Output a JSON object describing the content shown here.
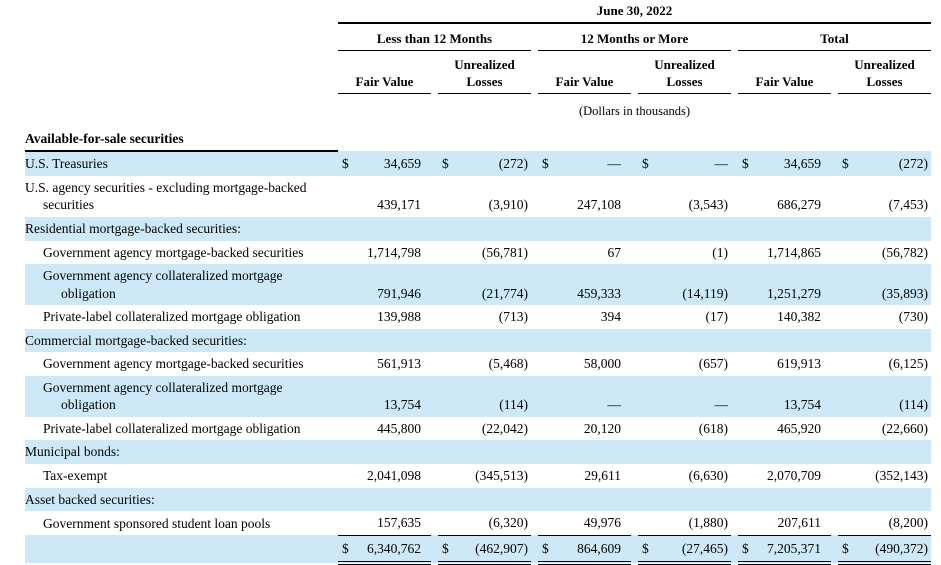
{
  "colors": {
    "row_highlight": "#cde9f8",
    "rule": "#000000",
    "text": "#000000"
  },
  "header": {
    "date": "June 30, 2022",
    "groups": [
      "Less than 12 Months",
      "12 Months or More",
      "Total"
    ],
    "sub": {
      "fair_value": "Fair Value",
      "unrealized_line1": "Unrealized",
      "unrealized_line2": "Losses"
    },
    "units_note": "(Dollars in thousands)",
    "section_title": "Available-for-sale securities"
  },
  "columns": [
    "Less than 12 Months Fair Value",
    "Less than 12 Months Unrealized Losses",
    "12 Months or More Fair Value",
    "12 Months or More Unrealized Losses",
    "Total Fair Value",
    "Total Unrealized Losses"
  ],
  "rows": [
    {
      "label": "U.S. Treasuries",
      "indent": 0,
      "highlight": true,
      "dollar": true,
      "values": [
        "34,659",
        "(272)",
        "—",
        "—",
        "34,659",
        "(272)"
      ]
    },
    {
      "label": "U.S. agency securities - excluding mortgage-backed securities",
      "indent": 0,
      "highlight": false,
      "values": [
        "439,171",
        "(3,910)",
        "247,108",
        "(3,543)",
        "686,279",
        "(7,453)"
      ]
    },
    {
      "label": "Residential mortgage-backed securities:",
      "indent": 0,
      "highlight": true,
      "values": []
    },
    {
      "label": "Government agency mortgage-backed securities",
      "indent": 1,
      "highlight": false,
      "values": [
        "1,714,798",
        "(56,781)",
        "67",
        "(1)",
        "1,714,865",
        "(56,782)"
      ]
    },
    {
      "label": "Government agency collateralized mortgage obligation",
      "indent": 1,
      "highlight": true,
      "values": [
        "791,946",
        "(21,774)",
        "459,333",
        "(14,119)",
        "1,251,279",
        "(35,893)"
      ]
    },
    {
      "label": "Private-label collateralized mortgage obligation",
      "indent": 1,
      "highlight": false,
      "values": [
        "139,988",
        "(713)",
        "394",
        "(17)",
        "140,382",
        "(730)"
      ]
    },
    {
      "label": "Commercial mortgage-backed securities:",
      "indent": 0,
      "highlight": true,
      "values": []
    },
    {
      "label": "Government agency mortgage-backed securities",
      "indent": 1,
      "highlight": false,
      "values": [
        "561,913",
        "(5,468)",
        "58,000",
        "(657)",
        "619,913",
        "(6,125)"
      ]
    },
    {
      "label": "Government agency collateralized mortgage obligation",
      "indent": 1,
      "highlight": true,
      "values": [
        "13,754",
        "(114)",
        "—",
        "—",
        "13,754",
        "(114)"
      ]
    },
    {
      "label": "Private-label collateralized mortgage obligation",
      "indent": 1,
      "highlight": false,
      "values": [
        "445,800",
        "(22,042)",
        "20,120",
        "(618)",
        "465,920",
        "(22,660)"
      ]
    },
    {
      "label": "Municipal bonds:",
      "indent": 0,
      "highlight": true,
      "values": []
    },
    {
      "label": "Tax-exempt",
      "indent": 1,
      "highlight": false,
      "values": [
        "2,041,098",
        "(345,513)",
        "29,611",
        "(6,630)",
        "2,070,709",
        "(352,143)"
      ]
    },
    {
      "label": "Asset backed securities:",
      "indent": 0,
      "highlight": true,
      "values": []
    },
    {
      "label": "Government sponsored student loan pools",
      "indent": 1,
      "highlight": false,
      "subtotal_rule": true,
      "values": [
        "157,635",
        "(6,320)",
        "49,976",
        "(1,880)",
        "207,611",
        "(8,200)"
      ]
    }
  ],
  "total_row": {
    "dollar": true,
    "values": [
      "6,340,762",
      "(462,907)",
      "864,609",
      "(27,465)",
      "7,205,371",
      "(490,372)"
    ]
  }
}
